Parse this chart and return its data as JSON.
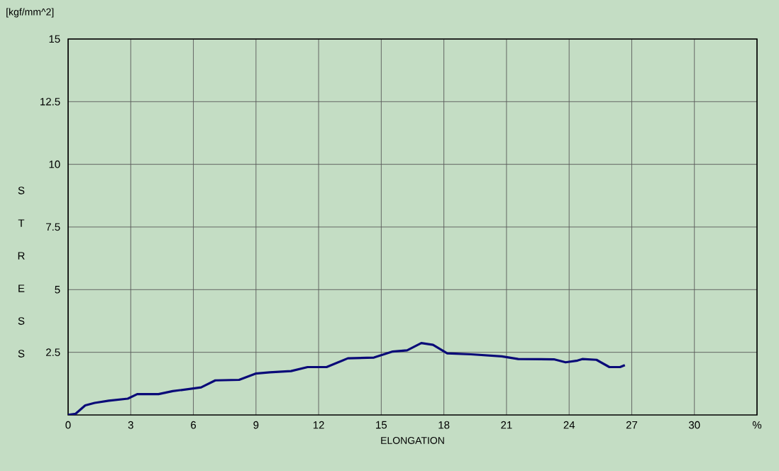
{
  "chart_data": {
    "type": "line",
    "xlabel": "ELONGATION",
    "ylabel": "STRESS",
    "annotations": [
      "[kgf/mm^2]"
    ],
    "x": [
      0,
      0.36,
      0.82,
      1.27,
      1.95,
      2.86,
      3.31,
      4.33,
      5.01,
      6.37,
      7.05,
      8.19,
      8.98,
      9.66,
      10.68,
      11.47,
      12.38,
      13.4,
      14.65,
      15.55,
      16.24,
      16.92,
      17.48,
      18.16,
      19.3,
      20.77,
      21.56,
      23.27,
      23.83,
      24.4,
      24.63,
      25.31,
      25.93,
      26.44,
      26.67
    ],
    "values": [
      0,
      0.05,
      0.38,
      0.48,
      0.57,
      0.65,
      0.83,
      0.83,
      0.95,
      1.1,
      1.38,
      1.4,
      1.65,
      1.7,
      1.75,
      1.91,
      1.91,
      2.26,
      2.29,
      2.53,
      2.58,
      2.87,
      2.8,
      2.46,
      2.42,
      2.34,
      2.23,
      2.22,
      2.1,
      2.17,
      2.23,
      2.2,
      1.91,
      1.91,
      1.99
    ],
    "color": "#0a0a78",
    "xlim": [
      0,
      33
    ],
    "ylim": [
      0,
      15
    ],
    "xticks": [
      0,
      3,
      6,
      9,
      12,
      15,
      18,
      21,
      24,
      27,
      30,
      {
        "value": 33,
        "label": "%"
      }
    ],
    "yticks": [
      2.5,
      5,
      7.5,
      10,
      12.5,
      15
    ],
    "grid": true
  }
}
